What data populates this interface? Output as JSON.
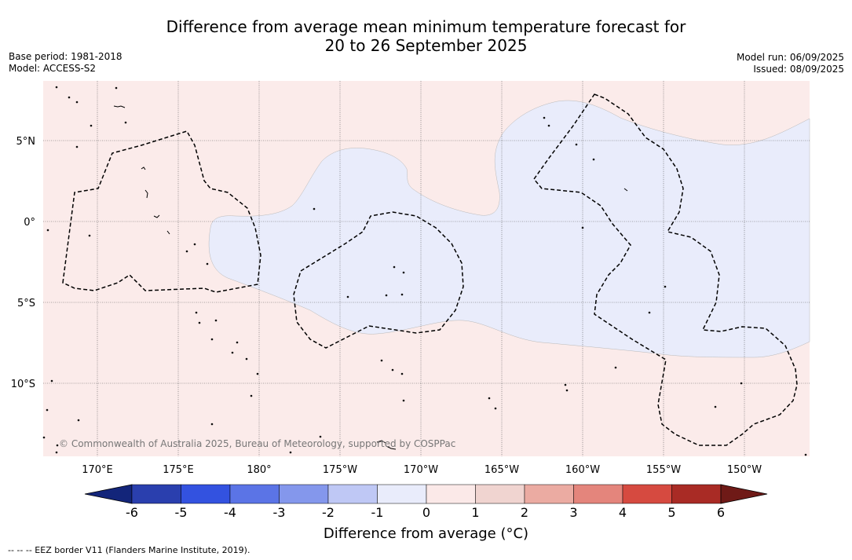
{
  "title_line1": "Difference from average mean minimum temperature forecast for",
  "title_line2": "20 to 26 September 2025",
  "base_period": "Base period: 1981-2018",
  "model": "Model: ACCESS-S2",
  "model_run": "Model run: 06/09/2025",
  "issued": "Issued: 08/09/2025",
  "lat_labels": [
    "5°N",
    "0°",
    "5°S",
    "10°S"
  ],
  "lon_labels": [
    "170°E",
    "175°E",
    "180°",
    "175°W",
    "170°W",
    "165°W",
    "160°W",
    "155°W",
    "150°W"
  ],
  "copyright": "© Commonwealth of Australia 2025, Bureau of Meteorology, supported by COSPPac",
  "colorbar": {
    "title": "Difference from average (°C)",
    "ticks": [
      "-6",
      "-5",
      "-4",
      "-3",
      "-2",
      "-1",
      "0",
      "1",
      "2",
      "3",
      "4",
      "5",
      "6"
    ],
    "colors": [
      "#13257a",
      "#2a3fae",
      "#3352e0",
      "#5b74e6",
      "#8497ec",
      "#bfc8f5",
      "#e9ecfb",
      "#fbe9e8",
      "#f0d4d0",
      "#ebaba2",
      "#e4857c",
      "#d64a40",
      "#a92b25",
      "#6f1a17"
    ]
  },
  "footnote": "-- -- -- EEZ border V11 (Flanders Marine Institute, 2019).",
  "map_colors": {
    "positive_anomaly": "#fbebea",
    "negative_anomaly": "#e9ecfb",
    "eez_border": "#000000"
  }
}
